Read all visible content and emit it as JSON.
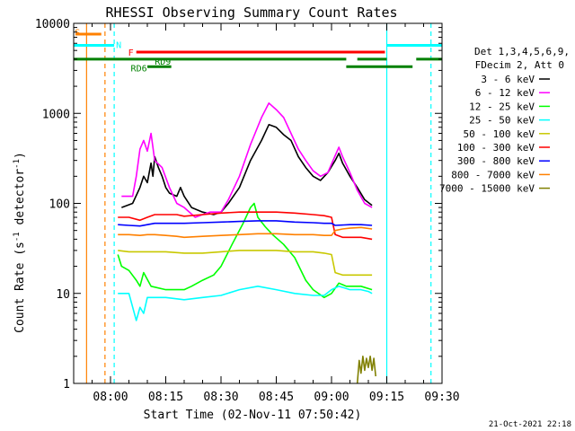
{
  "chart_data": {
    "type": "line",
    "title": "RHESSI Observing Summary Count Rates",
    "xlabel": "Start Time (02-Nov-11 07:50:42)",
    "ylabel": "Count Rate (s⁻¹ detector⁻¹)",
    "ylabel_parts": {
      "main": "Count Rate (s",
      "sup1": "-1",
      "mid": " detector",
      "sup2": "-1",
      "end": ")"
    },
    "x_unit": "minutes since 07:50",
    "xlim": [
      0,
      100
    ],
    "ylim": [
      1,
      10000
    ],
    "yscale": "log",
    "x_ticks": [
      {
        "x": 10,
        "label": "08:00"
      },
      {
        "x": 25,
        "label": "08:15"
      },
      {
        "x": 40,
        "label": "08:30"
      },
      {
        "x": 55,
        "label": "08:45"
      },
      {
        "x": 70,
        "label": "09:00"
      },
      {
        "x": 85,
        "label": "09:15"
      },
      {
        "x": 100,
        "label": "09:30"
      }
    ],
    "y_ticks": [
      {
        "y": 1,
        "label": "1"
      },
      {
        "y": 10,
        "label": "10"
      },
      {
        "y": 100,
        "label": "100"
      },
      {
        "y": 1000,
        "label": "1000"
      },
      {
        "y": 10000,
        "label": "10000"
      }
    ],
    "legend": {
      "placement": "right",
      "header": [
        "Det 1,3,4,5,6,9,",
        "FDecim 2, Att 0"
      ]
    },
    "series": [
      {
        "name": "3 - 6 keV",
        "color": "#000000",
        "points": [
          [
            13,
            90
          ],
          [
            16,
            100
          ],
          [
            18,
            150
          ],
          [
            19,
            200
          ],
          [
            20,
            170
          ],
          [
            21,
            280
          ],
          [
            21.5,
            200
          ],
          [
            22,
            330
          ],
          [
            23,
            250
          ],
          [
            24,
            200
          ],
          [
            25,
            150
          ],
          [
            26,
            130
          ],
          [
            28,
            120
          ],
          [
            29,
            150
          ],
          [
            30,
            120
          ],
          [
            32,
            90
          ],
          [
            35,
            80
          ],
          [
            38,
            75
          ],
          [
            40,
            80
          ],
          [
            42,
            100
          ],
          [
            45,
            150
          ],
          [
            48,
            300
          ],
          [
            51,
            500
          ],
          [
            53,
            750
          ],
          [
            55,
            700
          ],
          [
            57,
            580
          ],
          [
            59,
            500
          ],
          [
            61,
            330
          ],
          [
            63,
            250
          ],
          [
            65,
            200
          ],
          [
            67,
            180
          ],
          [
            69,
            220
          ],
          [
            71,
            300
          ],
          [
            72,
            360
          ],
          [
            73,
            280
          ],
          [
            75,
            200
          ],
          [
            77,
            150
          ],
          [
            79,
            110
          ],
          [
            81,
            95
          ]
        ]
      },
      {
        "name": "6 - 12 keV",
        "color": "#ff00ff",
        "points": [
          [
            13,
            120
          ],
          [
            16,
            120
          ],
          [
            17,
            200
          ],
          [
            18,
            400
          ],
          [
            19,
            500
          ],
          [
            20,
            380
          ],
          [
            21,
            600
          ],
          [
            22,
            300
          ],
          [
            24,
            250
          ],
          [
            26,
            150
          ],
          [
            28,
            100
          ],
          [
            30,
            90
          ],
          [
            33,
            70
          ],
          [
            35,
            75
          ],
          [
            37,
            80
          ],
          [
            40,
            80
          ],
          [
            42,
            110
          ],
          [
            45,
            200
          ],
          [
            48,
            450
          ],
          [
            51,
            900
          ],
          [
            53,
            1300
          ],
          [
            55,
            1100
          ],
          [
            57,
            900
          ],
          [
            59,
            600
          ],
          [
            61,
            400
          ],
          [
            63,
            300
          ],
          [
            65,
            230
          ],
          [
            67,
            200
          ],
          [
            69,
            220
          ],
          [
            71,
            340
          ],
          [
            72,
            420
          ],
          [
            73,
            330
          ],
          [
            75,
            220
          ],
          [
            77,
            140
          ],
          [
            79,
            100
          ],
          [
            81,
            90
          ]
        ]
      },
      {
        "name": "12 - 25 keV",
        "color": "#00ff00",
        "points": [
          [
            12,
            27
          ],
          [
            13,
            20
          ],
          [
            15,
            18
          ],
          [
            17,
            14
          ],
          [
            18,
            12
          ],
          [
            19,
            17
          ],
          [
            21,
            12
          ],
          [
            25,
            11
          ],
          [
            28,
            11
          ],
          [
            30,
            11
          ],
          [
            32,
            12
          ],
          [
            35,
            14
          ],
          [
            38,
            16
          ],
          [
            40,
            20
          ],
          [
            43,
            35
          ],
          [
            46,
            60
          ],
          [
            48,
            90
          ],
          [
            49,
            100
          ],
          [
            50,
            70
          ],
          [
            52,
            55
          ],
          [
            54,
            45
          ],
          [
            57,
            35
          ],
          [
            60,
            25
          ],
          [
            63,
            14
          ],
          [
            65,
            11
          ],
          [
            68,
            9
          ],
          [
            70,
            10
          ],
          [
            72,
            13
          ],
          [
            74,
            12
          ],
          [
            78,
            12
          ],
          [
            81,
            11
          ]
        ]
      },
      {
        "name": "25 - 50 keV",
        "color": "#00ffff",
        "points": [
          [
            12,
            10
          ],
          [
            13,
            10
          ],
          [
            15,
            10
          ],
          [
            17,
            5
          ],
          [
            18,
            7
          ],
          [
            19,
            6
          ],
          [
            20,
            9
          ],
          [
            22,
            9
          ],
          [
            25,
            9
          ],
          [
            30,
            8.5
          ],
          [
            35,
            9
          ],
          [
            40,
            9.5
          ],
          [
            45,
            11
          ],
          [
            50,
            12
          ],
          [
            55,
            11
          ],
          [
            60,
            10
          ],
          [
            65,
            9.5
          ],
          [
            68,
            9.5
          ],
          [
            70,
            11
          ],
          [
            72,
            12
          ],
          [
            75,
            11
          ],
          [
            78,
            11
          ],
          [
            80,
            10.5
          ],
          [
            81,
            10
          ]
        ]
      },
      {
        "name": "50 - 100 keV",
        "color": "#c8c800",
        "points": [
          [
            12,
            30
          ],
          [
            15,
            29
          ],
          [
            20,
            29
          ],
          [
            25,
            29
          ],
          [
            30,
            28
          ],
          [
            35,
            28
          ],
          [
            40,
            29
          ],
          [
            45,
            30
          ],
          [
            50,
            30
          ],
          [
            55,
            30
          ],
          [
            60,
            29
          ],
          [
            65,
            29
          ],
          [
            68,
            28
          ],
          [
            70,
            27
          ],
          [
            71,
            17
          ],
          [
            73,
            16
          ],
          [
            75,
            16
          ],
          [
            78,
            16
          ],
          [
            81,
            16
          ]
        ]
      },
      {
        "name": "100 - 300 keV",
        "color": "#ff0000",
        "points": [
          [
            12,
            70
          ],
          [
            15,
            70
          ],
          [
            18,
            65
          ],
          [
            20,
            70
          ],
          [
            22,
            75
          ],
          [
            25,
            75
          ],
          [
            28,
            75
          ],
          [
            30,
            72
          ],
          [
            35,
            75
          ],
          [
            40,
            78
          ],
          [
            45,
            80
          ],
          [
            50,
            80
          ],
          [
            55,
            80
          ],
          [
            60,
            78
          ],
          [
            65,
            75
          ],
          [
            68,
            73
          ],
          [
            70,
            70
          ],
          [
            71,
            45
          ],
          [
            73,
            42
          ],
          [
            75,
            42
          ],
          [
            78,
            42
          ],
          [
            81,
            40
          ]
        ]
      },
      {
        "name": "300 - 800 keV",
        "color": "#0000ff",
        "points": [
          [
            12,
            58
          ],
          [
            15,
            57
          ],
          [
            18,
            56
          ],
          [
            20,
            58
          ],
          [
            22,
            60
          ],
          [
            25,
            60
          ],
          [
            28,
            60
          ],
          [
            30,
            60
          ],
          [
            35,
            61
          ],
          [
            40,
            62
          ],
          [
            45,
            63
          ],
          [
            50,
            64
          ],
          [
            55,
            64
          ],
          [
            60,
            62
          ],
          [
            65,
            61
          ],
          [
            68,
            60
          ],
          [
            70,
            60
          ],
          [
            71,
            57
          ],
          [
            75,
            58
          ],
          [
            78,
            58
          ],
          [
            81,
            57
          ]
        ]
      },
      {
        "name": "800 - 7000 keV",
        "color": "#ff8000",
        "points": [
          [
            12,
            45
          ],
          [
            15,
            45
          ],
          [
            18,
            44
          ],
          [
            20,
            45
          ],
          [
            22,
            45
          ],
          [
            25,
            44
          ],
          [
            28,
            43
          ],
          [
            30,
            42
          ],
          [
            35,
            43
          ],
          [
            40,
            44
          ],
          [
            45,
            45
          ],
          [
            50,
            46
          ],
          [
            55,
            46
          ],
          [
            60,
            45
          ],
          [
            65,
            45
          ],
          [
            68,
            44
          ],
          [
            70,
            44
          ],
          [
            71,
            50
          ],
          [
            73,
            52
          ],
          [
            75,
            53
          ],
          [
            78,
            54
          ],
          [
            81,
            52
          ]
        ]
      },
      {
        "name": "7000 - 15000 keV",
        "color": "#808000",
        "points": [
          [
            77,
            1
          ],
          [
            77.5,
            1.8
          ],
          [
            78,
            1.3
          ],
          [
            78.5,
            2
          ],
          [
            79,
            1.4
          ],
          [
            79.5,
            1.9
          ],
          [
            80,
            1.5
          ],
          [
            80.5,
            2
          ],
          [
            81,
            1.4
          ],
          [
            81.5,
            1.9
          ],
          [
            82,
            1.2
          ]
        ]
      }
    ],
    "status_bars": [
      {
        "label": "S",
        "color": "#ff8000",
        "x_start": 0.5,
        "x_end": 7.5,
        "level": 7600
      },
      {
        "label": "N",
        "color": "#00ffff",
        "x_start": 0,
        "x_end": 11,
        "level": 5700
      },
      {
        "label": "N",
        "color": "#00ffff",
        "x_start": 85,
        "x_end": 100,
        "level": 5700
      },
      {
        "label": "F",
        "color": "#ff0000",
        "x_start": 17,
        "x_end": 84.5,
        "level": 4800
      },
      {
        "label": "RD9",
        "color": "#008000",
        "x_start": 0,
        "x_end": 74,
        "level": 4000
      },
      {
        "label": "RD9",
        "color": "#008000",
        "x_start": 77,
        "x_end": 85,
        "level": 4000
      },
      {
        "label": "RD9",
        "color": "#008000",
        "x_start": 93,
        "x_end": 100,
        "level": 4000
      },
      {
        "label": "RD6",
        "color": "#008000",
        "x_start": 20,
        "x_end": 26.5,
        "level": 3300
      },
      {
        "label": "RD6",
        "color": "#008000",
        "x_start": 74,
        "x_end": 92,
        "level": 3300
      }
    ],
    "status_labels": [
      {
        "text": "S",
        "color": "#ff8000",
        "x": 0.3,
        "y": 8000
      },
      {
        "text": "N",
        "color": "#00ffff",
        "x": 11.5,
        "y": 5800
      },
      {
        "text": "F",
        "color": "#ff0000",
        "x": 14.8,
        "y": 4800
      },
      {
        "text": "RD9",
        "color": "#008000",
        "x": 22,
        "y": 3800
      },
      {
        "text": "RD6",
        "color": "#008000",
        "x": 15.5,
        "y": 3200
      }
    ],
    "vlines": [
      {
        "x": 3.5,
        "color": "#ff8000",
        "style": "solid"
      },
      {
        "x": 8.5,
        "color": "#ff8000",
        "style": "dashed"
      },
      {
        "x": 11,
        "color": "#00ffff",
        "style": "dashed"
      },
      {
        "x": 85,
        "color": "#00ffff",
        "style": "solid"
      },
      {
        "x": 97,
        "color": "#00ffff",
        "style": "dashed"
      }
    ]
  },
  "footer_timestamp": "21-Oct-2021 22:18"
}
